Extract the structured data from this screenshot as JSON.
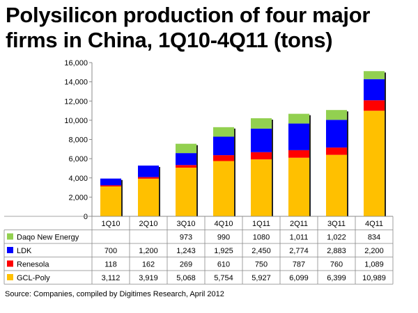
{
  "chart_data": {
    "type": "bar",
    "stacked": true,
    "title": "Polysilicon production of four major firms in China, 1Q10-4Q11 (tons)",
    "categories": [
      "1Q10",
      "2Q10",
      "3Q10",
      "4Q10",
      "1Q11",
      "2Q11",
      "3Q11",
      "4Q11"
    ],
    "ylim": [
      0,
      16000
    ],
    "yticks": [
      "0",
      "2,000",
      "4,000",
      "6,000",
      "8,000",
      "10,000",
      "12,000",
      "14,000",
      "16,000"
    ],
    "ytick_values": [
      0,
      2000,
      4000,
      6000,
      8000,
      10000,
      12000,
      14000,
      16000
    ],
    "grid": false,
    "legend": "data-table-left",
    "series": [
      {
        "name": "GCL-Poly",
        "color": "#FFC000",
        "values": [
          3112,
          3919,
          5068,
          5754,
          5927,
          6099,
          6399,
          10989
        ],
        "labels": [
          "3,112",
          "3,919",
          "5,068",
          "5,754",
          "5,927",
          "6,099",
          "6,399",
          "10,989"
        ]
      },
      {
        "name": "Renesola",
        "color": "#FF0000",
        "values": [
          118,
          162,
          269,
          610,
          750,
          787,
          760,
          1089
        ],
        "labels": [
          "118",
          "162",
          "269",
          "610",
          "750",
          "787",
          "760",
          "1,089"
        ]
      },
      {
        "name": "LDK",
        "color": "#0000FF",
        "values": [
          700,
          1200,
          1243,
          1925,
          2450,
          2774,
          2883,
          2200
        ],
        "labels": [
          "700",
          "1,200",
          "1,243",
          "1,925",
          "2,450",
          "2,774",
          "2,883",
          "2,200"
        ]
      },
      {
        "name": "Daqo New Energy",
        "color": "#92D050",
        "values": [
          0,
          0,
          973,
          990,
          1080,
          1011,
          1022,
          834
        ],
        "labels": [
          "",
          "",
          "973",
          "990",
          "1080",
          "1,011",
          "1,022",
          "834"
        ]
      }
    ]
  },
  "source": "Source: Companies, compiled by Digitimes Research, April 2012"
}
